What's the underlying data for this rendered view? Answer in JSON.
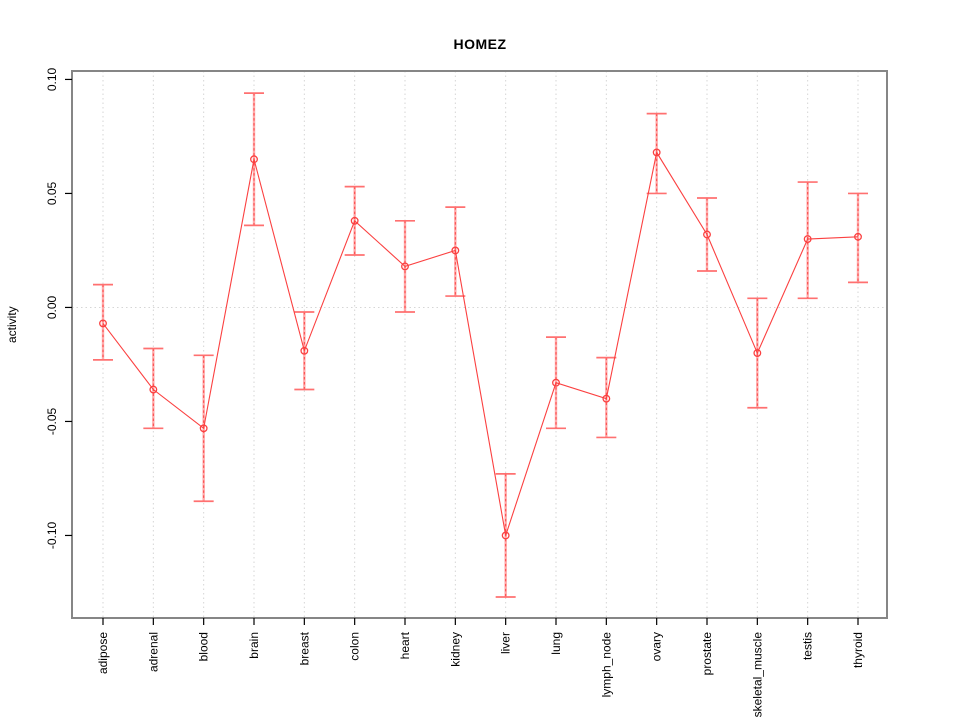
{
  "chart_data": {
    "type": "line",
    "title": "HOMEZ",
    "xlabel": "",
    "ylabel": "activity",
    "legend_position": "none",
    "grid": {
      "vertical_dotted_per_category": true,
      "horizontal_dotted_at_zero": true
    },
    "categories": [
      "adipose",
      "adrenal",
      "blood",
      "brain",
      "breast",
      "colon",
      "heart",
      "kidney",
      "liver",
      "lung",
      "lymph_node",
      "ovary",
      "prostate",
      "skeletal_muscle",
      "testis",
      "thyroid"
    ],
    "series": [
      {
        "name": "activity",
        "values": [
          -0.007,
          -0.036,
          -0.053,
          0.065,
          -0.019,
          0.038,
          0.018,
          0.025,
          -0.1,
          -0.033,
          -0.04,
          0.068,
          0.032,
          -0.02,
          0.03,
          0.031
        ],
        "upper": [
          0.01,
          -0.018,
          -0.021,
          0.094,
          -0.002,
          0.053,
          0.038,
          0.044,
          -0.073,
          -0.013,
          -0.022,
          0.085,
          0.048,
          0.004,
          0.055,
          0.05
        ],
        "lower": [
          -0.023,
          -0.053,
          -0.085,
          0.036,
          -0.036,
          0.023,
          -0.002,
          0.005,
          -0.127,
          -0.053,
          -0.057,
          0.05,
          0.016,
          -0.044,
          0.004,
          0.011
        ]
      }
    ],
    "yticks": [
      {
        "value": 0.1,
        "label": "0.10"
      },
      {
        "value": 0.05,
        "label": "0.05"
      },
      {
        "value": 0.0,
        "label": "0.00"
      },
      {
        "value": -0.05,
        "label": "-0.05"
      },
      {
        "value": -0.1,
        "label": "-0.10"
      }
    ],
    "ylim": [
      -0.1362,
      0.1037
    ],
    "colors": {
      "line": "#fb4040",
      "point_stroke": "#fb4040",
      "error_bar_solid": "#ffaaaa",
      "error_bar_dash": "#fb4545",
      "error_cap": "#ff7070",
      "gridline": "#d6d6d6",
      "plot_border": "#868686",
      "tick": "#000000",
      "text": "#000000"
    }
  }
}
